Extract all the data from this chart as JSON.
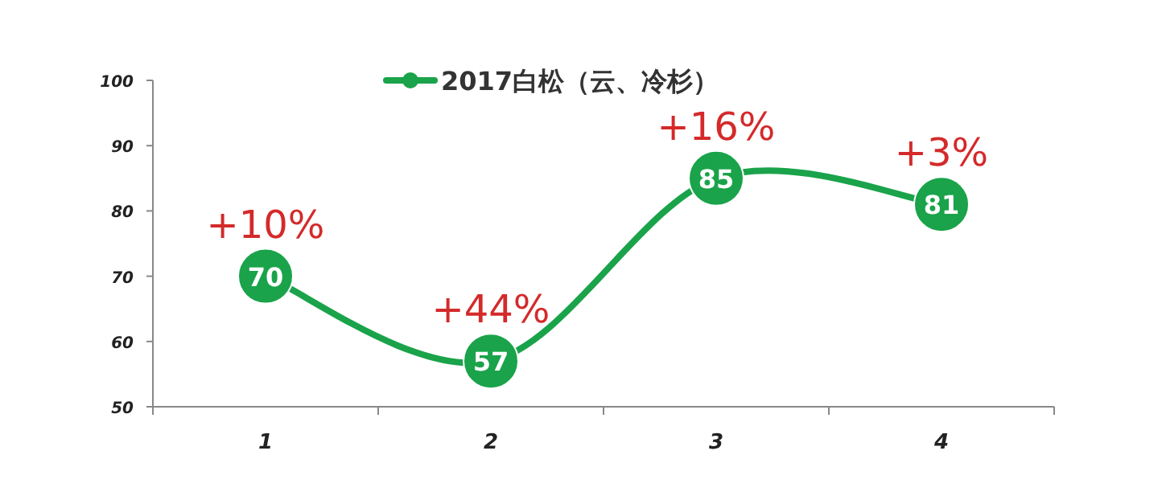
{
  "chart_data": {
    "type": "line",
    "categories": [
      "1",
      "2",
      "3",
      "4"
    ],
    "series": [
      {
        "name": "2017白松（云、冷杉）",
        "color": "#1aa34a",
        "values": [
          70,
          57,
          85,
          81
        ]
      }
    ],
    "ylim": [
      50,
      100
    ],
    "yticks": [
      50,
      60,
      70,
      80,
      90,
      100
    ],
    "grid": false,
    "legend": "top",
    "marker": "circle",
    "data_labels": true,
    "annotations": [
      {
        "text": "+10%",
        "x": "1",
        "y": 70
      },
      {
        "text": "+44%",
        "x": "2",
        "y": 57
      },
      {
        "text": "+16%",
        "x": "3",
        "y": 85
      },
      {
        "text": "+3%",
        "x": "4",
        "y": 81
      }
    ]
  }
}
